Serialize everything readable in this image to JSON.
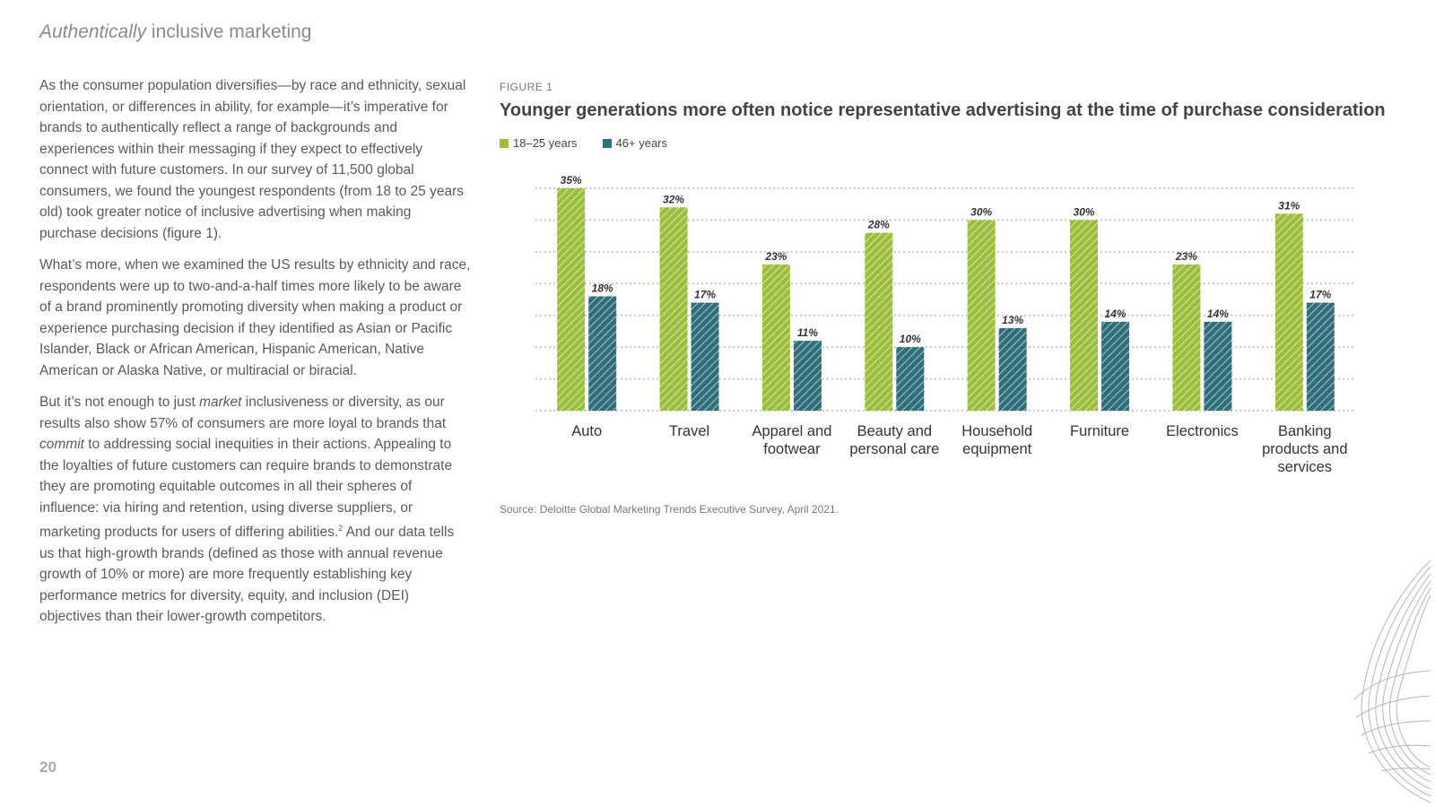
{
  "header": {
    "title_italic": "Authentically",
    "title_rest": " inclusive marketing"
  },
  "body": {
    "p1": "As the consumer population diversifies—by race and ethnicity, sexual orientation, or differences in ability, for example—it’s imperative for brands to authentically reflect a range of backgrounds and experiences within their messaging if they expect to effectively connect with future customers. In our survey of 11,500 global consumers, we found the youngest respondents (from 18 to 25 years old) took greater notice of inclusive advertising when making purchase decisions (figure 1).",
    "p2": "What’s more, when we examined the US results by ethnicity and race, respondents were up to two-and-a-half times more likely to be aware of a brand prominently promoting diversity when making a product or experience purchasing decision if they identified as Asian or Pacific Islander, Black or African American, Hispanic American, Native American or Alaska Native, or multiracial or biracial.",
    "p3_a": "But it’s not enough to just ",
    "p3_b": "market",
    "p3_c": " inclusiveness or diversity, as our results also show 57% of consumers are more loyal to brands that ",
    "p3_d": "commit",
    "p3_e": " to addressing social inequities in their actions. Appealing to the loyalties of future customers can require brands to demonstrate they are promoting equitable outcomes in all their spheres of influence: via hiring and retention, using diverse suppliers, or marketing products for users of differing abilities.",
    "p3_sup": "2",
    "p3_f": " And our data tells us that high-growth brands (defined as those with annual revenue growth of 10% or more) are more frequently establishing key performance metrics for diversity, equity, and inclusion (DEI) objectives than their lower-growth competitors."
  },
  "page_number": "20",
  "figure": {
    "label": "FIGURE 1",
    "source": "Source: Deloitte Global Marketing Trends Executive Survey, April 2021."
  },
  "colors": {
    "series1": "#9bbf3a",
    "series2": "#2f6e7a",
    "grid": "#c8c8c8"
  },
  "chart_data": {
    "type": "bar",
    "title": "Younger generations more often notice representative advertising at the time of purchase consideration",
    "categories": [
      [
        "Auto"
      ],
      [
        "Travel"
      ],
      [
        "Apparel and",
        "footwear"
      ],
      [
        "Beauty and",
        "personal care"
      ],
      [
        "Household",
        "equipment"
      ],
      [
        "Furniture"
      ],
      [
        "Electronics"
      ],
      [
        "Banking",
        "products and",
        "services"
      ]
    ],
    "series": [
      {
        "name": "18–25 years",
        "values": [
          35,
          32,
          23,
          28,
          30,
          30,
          23,
          31
        ],
        "labels": [
          "35%",
          "32%",
          "23%",
          "28%",
          "30%",
          "30%",
          "23%",
          "31%"
        ]
      },
      {
        "name": "46+ years",
        "values": [
          18,
          17,
          11,
          10,
          13,
          14,
          14,
          17
        ],
        "labels": [
          "18%",
          "17%",
          "11%",
          "10%",
          "13%",
          "14%",
          "14%",
          "17%"
        ]
      }
    ],
    "ylim": [
      0,
      35
    ],
    "grid": true,
    "legend": "top-left",
    "xlabel": "",
    "ylabel": ""
  }
}
